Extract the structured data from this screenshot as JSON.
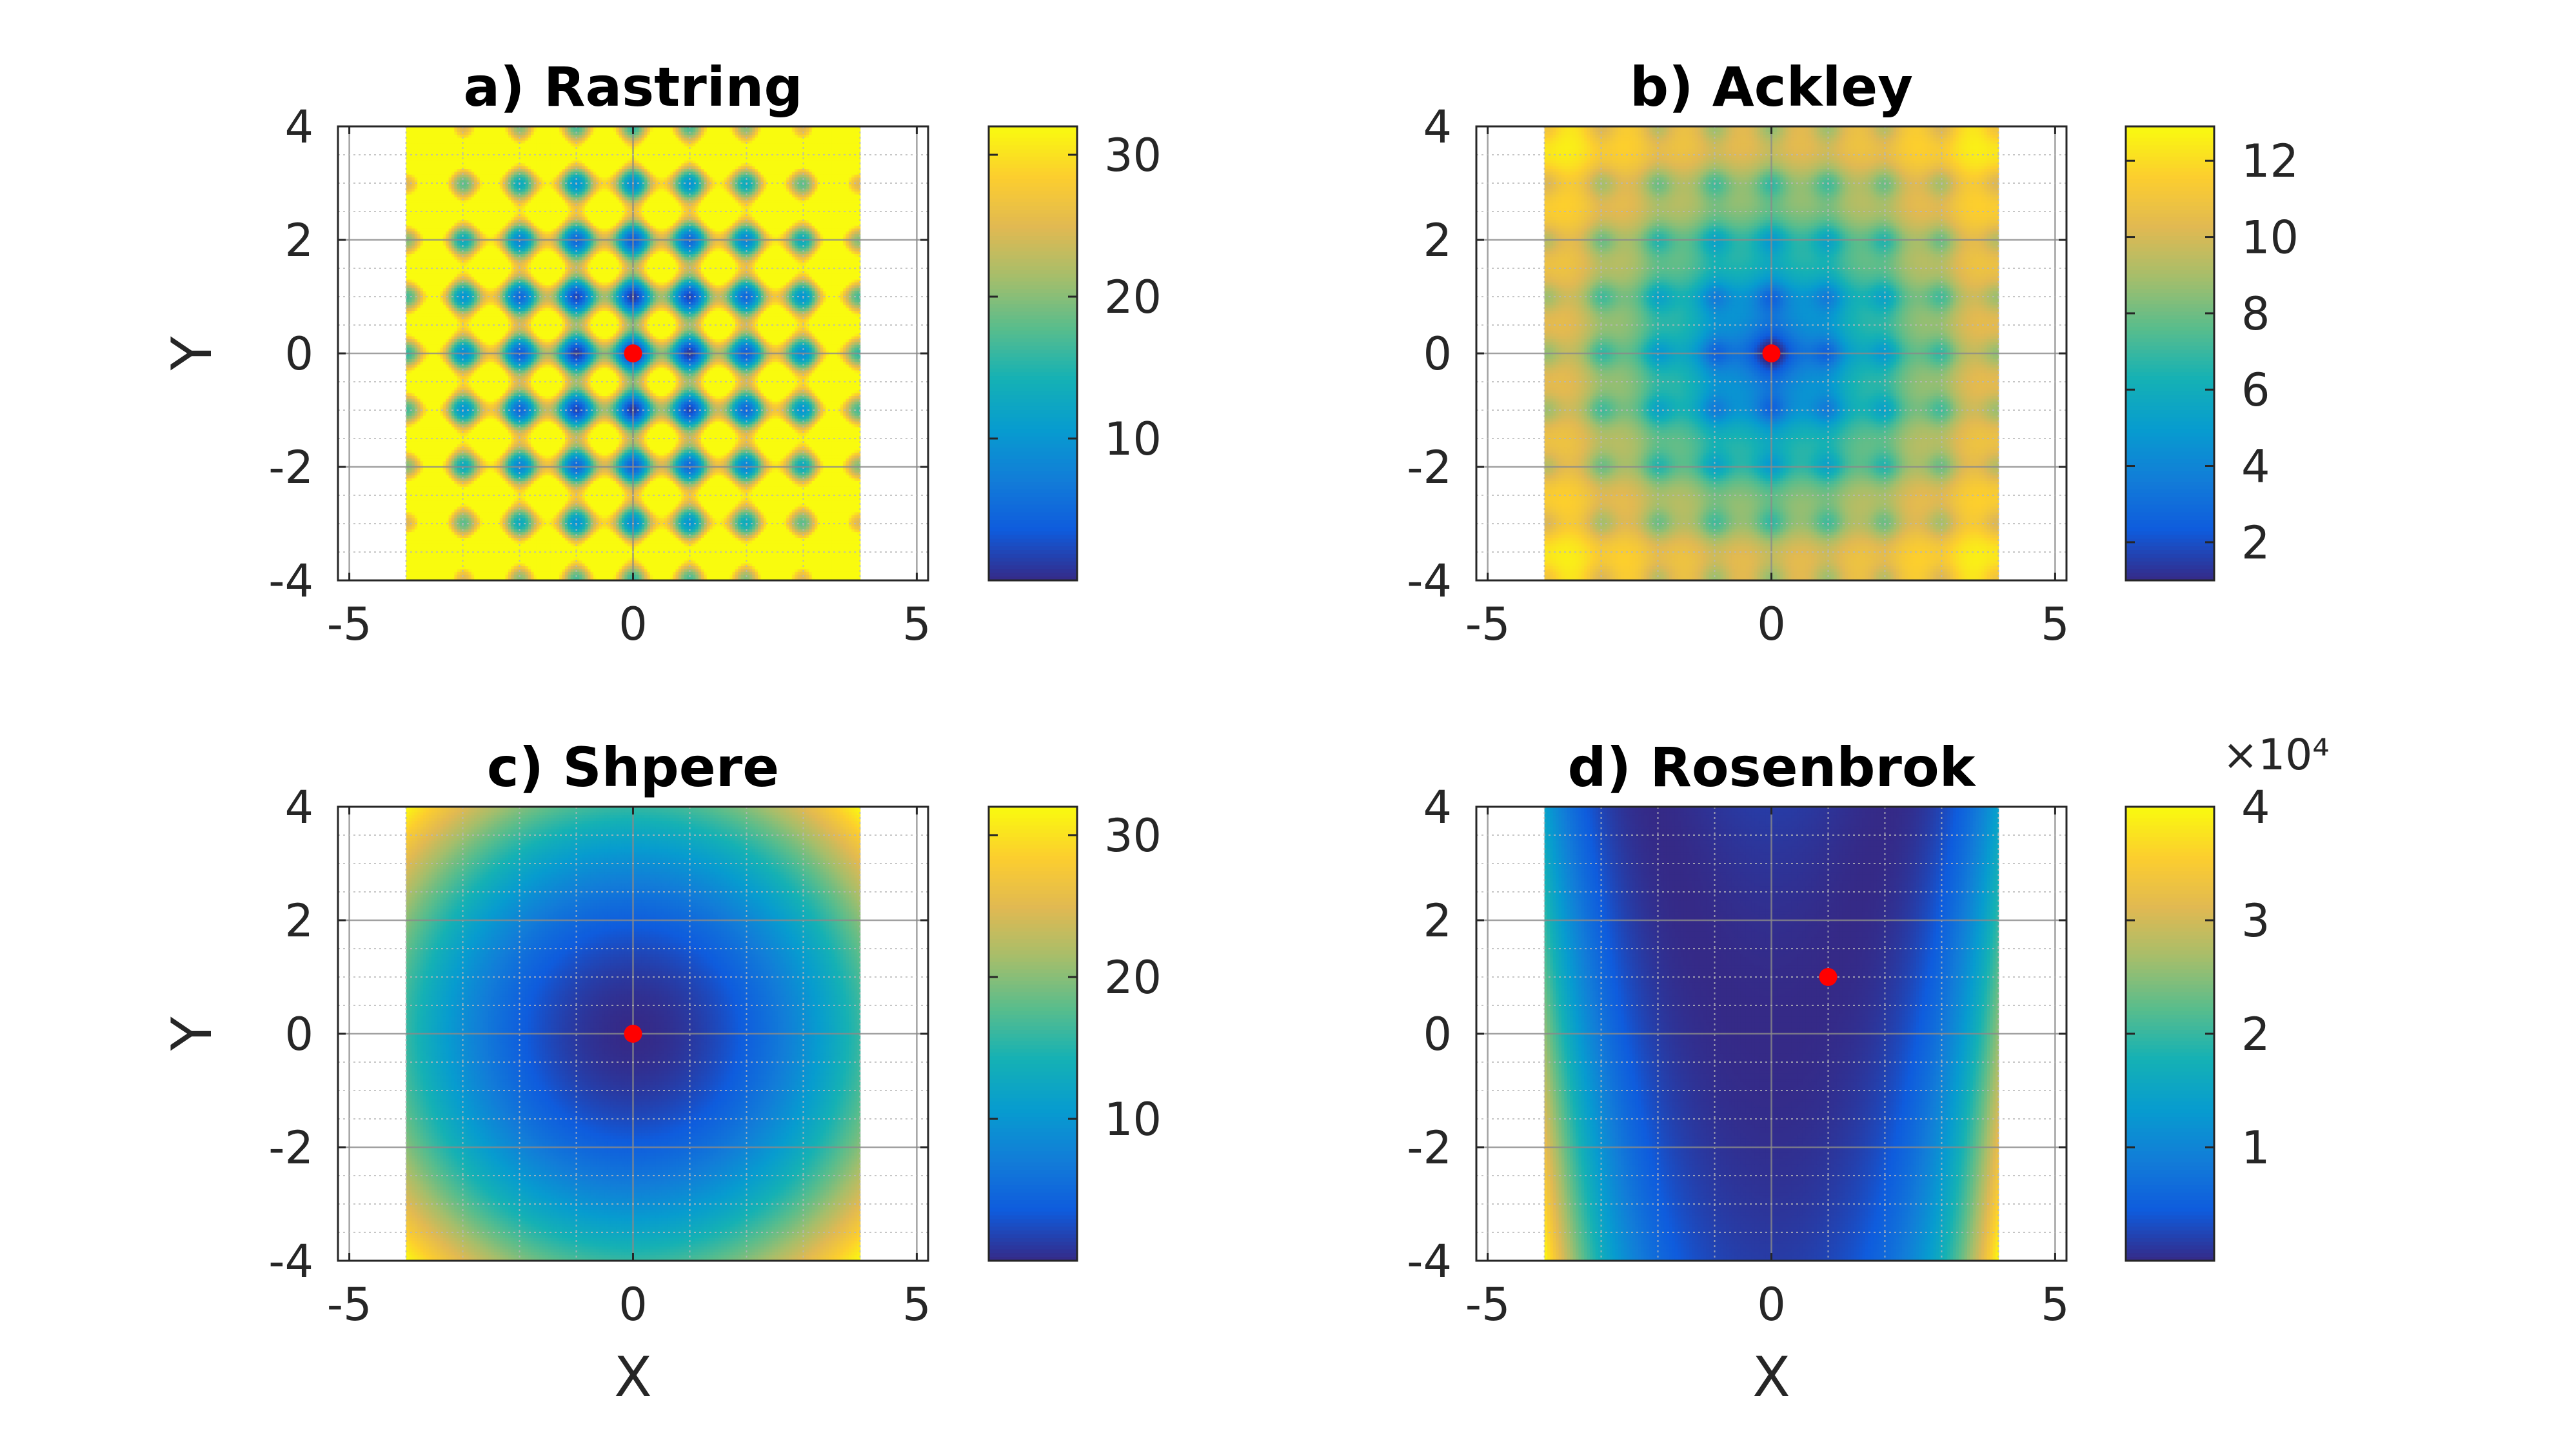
{
  "figure": {
    "marker_color": "#ff0000",
    "colormap": "parula",
    "x_axis_label": "X",
    "y_axis_label": "Y"
  },
  "chart_data": [
    {
      "type": "heatmap",
      "title": "a) Rastring",
      "function": "rastrigin",
      "xlabel": "",
      "ylabel": "Y",
      "xlim": [
        -5.2,
        5.2
      ],
      "ylim": [
        -4,
        4
      ],
      "data_extent_x": [
        -4,
        4
      ],
      "data_extent_y": [
        -4,
        4
      ],
      "x_ticks": [
        "-5",
        "0",
        "5"
      ],
      "y_ticks": [
        "4",
        "2",
        "0",
        "-2",
        "-4"
      ],
      "grid": "on",
      "minimum_point": {
        "x": 0,
        "y": 0
      },
      "colorbar": {
        "range": [
          0,
          32
        ],
        "ticks": [
          "30",
          "20",
          "10"
        ],
        "exponent": ""
      }
    },
    {
      "type": "heatmap",
      "title": "b) Ackley",
      "function": "ackley",
      "xlabel": "",
      "ylabel": "",
      "xlim": [
        -5.2,
        5.2
      ],
      "ylim": [
        -4,
        4
      ],
      "data_extent_x": [
        -4,
        4
      ],
      "data_extent_y": [
        -4,
        4
      ],
      "x_ticks": [
        "-5",
        "0",
        "5"
      ],
      "y_ticks": [
        "4",
        "2",
        "0",
        "-2",
        "-4"
      ],
      "grid": "on",
      "minimum_point": {
        "x": 0,
        "y": 0
      },
      "colorbar": {
        "range": [
          1,
          12.9
        ],
        "ticks": [
          "12",
          "10",
          "8",
          "6",
          "4",
          "2"
        ],
        "exponent": ""
      }
    },
    {
      "type": "heatmap",
      "title": "c) Shpere",
      "function": "sphere",
      "xlabel": "X",
      "ylabel": "Y",
      "xlim": [
        -5.2,
        5.2
      ],
      "ylim": [
        -4,
        4
      ],
      "data_extent_x": [
        -4,
        4
      ],
      "data_extent_y": [
        -4,
        4
      ],
      "x_ticks": [
        "-5",
        "0",
        "5"
      ],
      "y_ticks": [
        "4",
        "2",
        "0",
        "-2",
        "-4"
      ],
      "grid": "on",
      "minimum_point": {
        "x": 0,
        "y": 0
      },
      "colorbar": {
        "range": [
          0,
          32
        ],
        "ticks": [
          "30",
          "20",
          "10"
        ],
        "exponent": ""
      }
    },
    {
      "type": "heatmap",
      "title": "d) Rosenbrok",
      "function": "rosenbrock",
      "xlabel": "X",
      "ylabel": "",
      "xlim": [
        -5.2,
        5.2
      ],
      "ylim": [
        -4,
        4
      ],
      "data_extent_x": [
        -4,
        4
      ],
      "data_extent_y": [
        -4,
        4
      ],
      "x_ticks": [
        "-5",
        "0",
        "5"
      ],
      "y_ticks": [
        "4",
        "2",
        "0",
        "-2",
        "-4"
      ],
      "grid": "on",
      "minimum_point": {
        "x": 1,
        "y": 1
      },
      "colorbar": {
        "range": [
          0,
          40000
        ],
        "ticks": [
          "4",
          "3",
          "2",
          "1"
        ],
        "exponent": "×10⁴"
      }
    }
  ]
}
